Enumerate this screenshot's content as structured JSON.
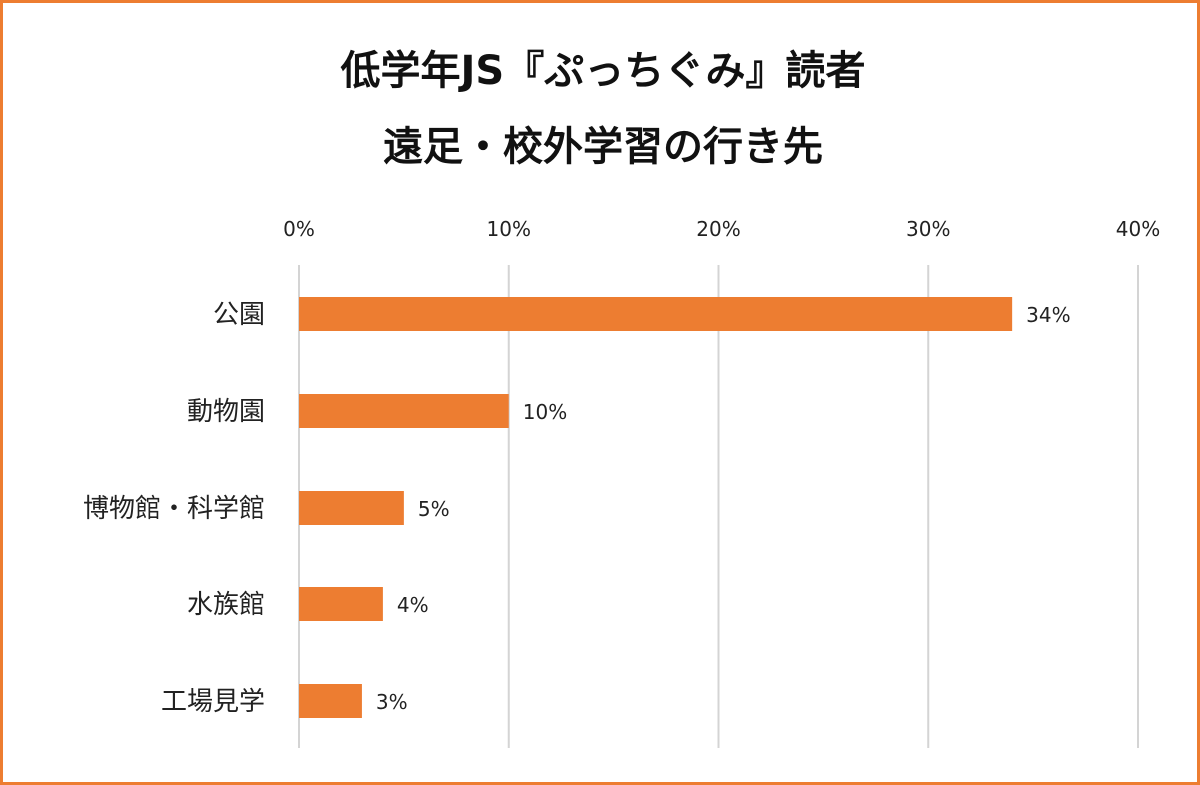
{
  "chart_data": {
    "type": "bar",
    "orientation": "horizontal",
    "title_lines": [
      "低学年JS『ぷっちぐみ』読者",
      "遠足・校外学習の行き先"
    ],
    "categories": [
      "公園",
      "動物園",
      "博物館・科学館",
      "水族館",
      "工場見学"
    ],
    "values": [
      34,
      10,
      5,
      4,
      3
    ],
    "data_labels": [
      "34%",
      "10%",
      "5%",
      "4%",
      "3%"
    ],
    "xlim": [
      0,
      40
    ],
    "x_ticks": [
      0,
      10,
      20,
      30,
      40
    ],
    "x_tick_labels": [
      "0%",
      "10%",
      "20%",
      "30%",
      "40%"
    ],
    "axis_position": "top",
    "grid": true,
    "bar_color": "#ED7D31",
    "border_color": "#ED7D31"
  }
}
